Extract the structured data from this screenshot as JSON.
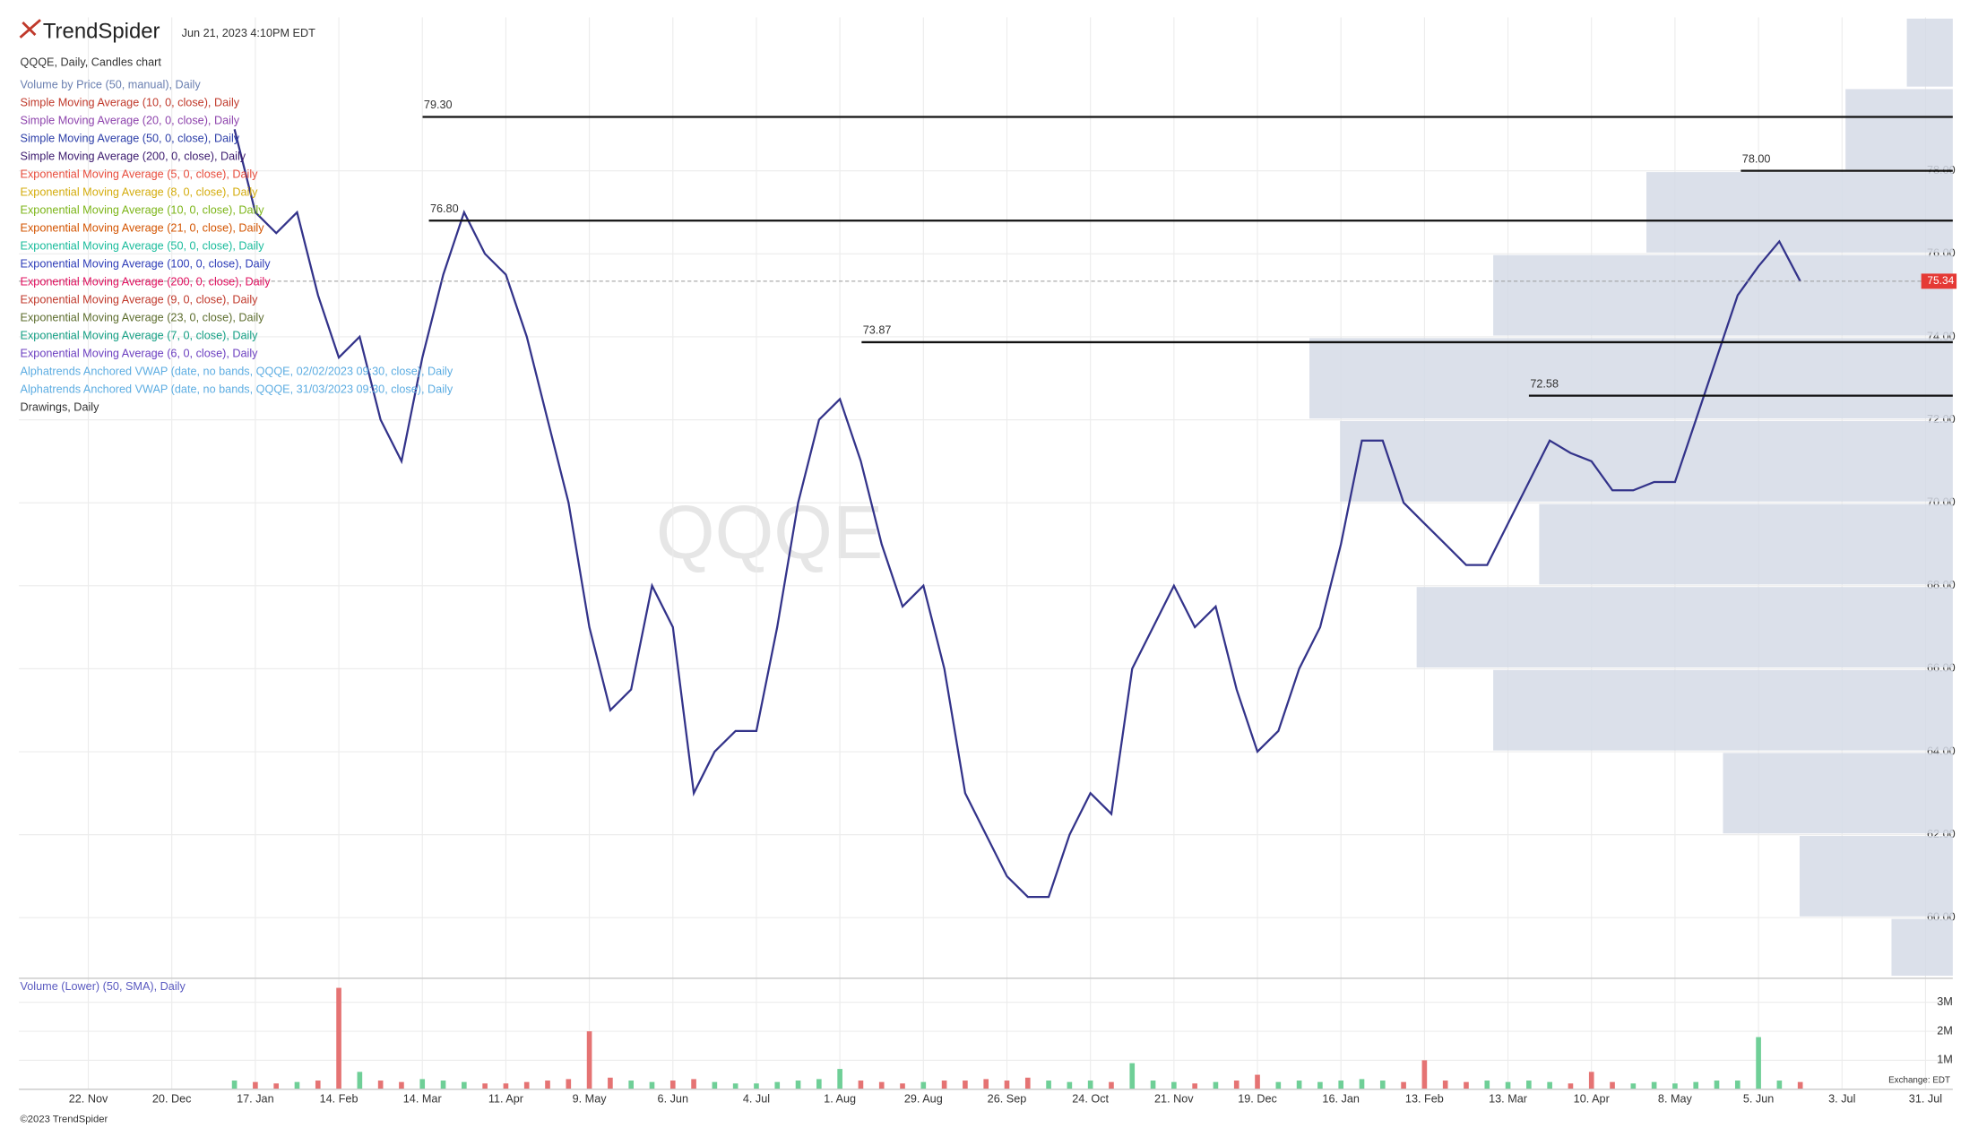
{
  "header": {
    "logo": "TrendSpider",
    "timestamp": "Jun 21, 2023 4:10PM EDT",
    "symbol_line": "QQQE, Daily, Candles chart",
    "watermark": "QQQE"
  },
  "studies": [
    {
      "name": "Volume by Price (50, manual), Daily",
      "color": "#6a7fb0"
    },
    {
      "name": "Simple Moving Average (10, 0, close), Daily",
      "color": "#c0392b"
    },
    {
      "name": "Simple Moving Average (20, 0, close), Daily",
      "color": "#8e44ad"
    },
    {
      "name": "Simple Moving Average (50, 0, close), Daily",
      "color": "#2c3ea8"
    },
    {
      "name": "Simple Moving Average (200, 0, close), Daily",
      "color": "#3b1a6e"
    },
    {
      "name": "Exponential Moving Average (5, 0, close), Daily",
      "color": "#e74c3c"
    },
    {
      "name": "Exponential Moving Average (8, 0, close), Daily",
      "color": "#d4ac0d"
    },
    {
      "name": "Exponential Moving Average (10, 0, close), Daily",
      "color": "#7cb518"
    },
    {
      "name": "Exponential Moving Average (21, 0, close), Daily",
      "color": "#d35400"
    },
    {
      "name": "Exponential Moving Average (50, 0, close), Daily",
      "color": "#1abc9c"
    },
    {
      "name": "Exponential Moving Average (100, 0, close), Daily",
      "color": "#2e3db8"
    },
    {
      "name": "Exponential Moving Average (200, 0, close), Daily",
      "color": "#e0115f"
    },
    {
      "name": "Exponential Moving Average (9, 0, close), Daily",
      "color": "#c0392b"
    },
    {
      "name": "Exponential Moving Average (23, 0, close), Daily",
      "color": "#5d6d2e"
    },
    {
      "name": "Exponential Moving Average (7, 0, close), Daily",
      "color": "#16a085"
    },
    {
      "name": "Exponential Moving Average (6, 0, close), Daily",
      "color": "#6c3fc0"
    },
    {
      "name": "Alphatrends Anchored VWAP (date, no bands, QQQE, 02/02/2023 09:30, close), Daily",
      "color": "#5dade2"
    },
    {
      "name": "Alphatrends Anchored VWAP (date, no bands, QQQE, 31/03/2023 09:30, close), Daily",
      "color": "#5dade2"
    },
    {
      "name": "Drawings, Daily",
      "color": "#333333"
    }
  ],
  "chart_data": {
    "type": "line",
    "color": "#33338a",
    "categories": [
      "22. Nov",
      null,
      null,
      null,
      "20. Dec",
      null,
      null,
      null,
      "17. Jan",
      null,
      null,
      null,
      "14. Feb",
      null,
      null,
      null,
      "14. Mar",
      null,
      null,
      null,
      "11. Apr",
      null,
      null,
      null,
      "9. May",
      null,
      null,
      null,
      "6. Jun",
      null,
      null,
      null,
      "4. Jul",
      null,
      null,
      null,
      "1. Aug",
      null,
      null,
      null,
      "29. Aug",
      null,
      null,
      null,
      "26. Sep",
      null,
      null,
      null,
      "24. Oct",
      null,
      null,
      null,
      "21. Nov",
      null,
      null,
      null,
      "19. Dec",
      null,
      null,
      null,
      "16. Jan",
      null,
      null,
      null,
      "13. Feb",
      null,
      null,
      null,
      "13. Mar",
      null,
      null,
      null,
      "10. Apr",
      null,
      null,
      null,
      "8. May",
      null,
      null,
      null,
      "5. Jun",
      null,
      null,
      null,
      "3. Jul",
      null,
      null,
      null,
      "31. Jul"
    ],
    "values": [
      null,
      null,
      null,
      null,
      null,
      null,
      null,
      79,
      77,
      76.5,
      77,
      75,
      73.5,
      74,
      72,
      71,
      73.5,
      75.5,
      77,
      76,
      75.5,
      74,
      72,
      70,
      67,
      65,
      65.5,
      68,
      67,
      63,
      64,
      64.5,
      64.5,
      67,
      70,
      72,
      72.5,
      71,
      69,
      67.5,
      68,
      66,
      63,
      62,
      61,
      60.5,
      60.5,
      62,
      63,
      62.5,
      66,
      67,
      68,
      67,
      67.5,
      65.5,
      64,
      64.5,
      66,
      67,
      69,
      71.5,
      71.5,
      70,
      69.5,
      69,
      68.5,
      68.5,
      69.5,
      70.5,
      71.5,
      71.2,
      71,
      70.3,
      70.3,
      70.5,
      70.5,
      72,
      73.5,
      75,
      75.7,
      76.3,
      75.34,
      null,
      null,
      null,
      null,
      null,
      null
    ],
    "ylim": [
      58.57,
      81.7
    ],
    "yticks": [
      {
        "value": 60,
        "label": "60.00"
      },
      {
        "value": 62,
        "label": "62.00"
      },
      {
        "value": 64,
        "label": "64.00"
      },
      {
        "value": 66,
        "label": "66.00"
      },
      {
        "value": 68,
        "label": "68.00"
      },
      {
        "value": 70,
        "label": "70.00"
      },
      {
        "value": 72,
        "label": "72.00"
      },
      {
        "value": 74,
        "label": "74.00"
      },
      {
        "value": 76,
        "label": "76.00"
      },
      {
        "value": 78,
        "label": "78.00"
      }
    ],
    "grid": true,
    "levels": [
      {
        "value": 79.3,
        "label": "79.30"
      },
      {
        "value": 76.8,
        "label": "76.80"
      },
      {
        "value": 73.87,
        "label": "73.87"
      },
      {
        "value": 72.58,
        "label": "72.58"
      },
      {
        "value": 78,
        "label": "78.00"
      }
    ],
    "last_price": {
      "value": 75.34,
      "label": "75.34"
    },
    "volume_by_price": {
      "bins": [
        58,
        60,
        62,
        64,
        66,
        68,
        70,
        72,
        74,
        76,
        78,
        80,
        82
      ],
      "values": [
        40,
        100,
        150,
        300,
        350,
        270,
        400,
        420,
        300,
        200,
        70,
        30
      ],
      "color": "#d5dbe6"
    },
    "volume": {
      "title": "Volume (Lower) (50, SMA), Daily",
      "up_color": "#6fcf97",
      "down_color": "#e57373",
      "values": [
        null,
        null,
        null,
        null,
        null,
        null,
        null,
        300000,
        250000,
        200000,
        250000,
        300000,
        3500000,
        600000,
        300000,
        250000,
        350000,
        300000,
        250000,
        200000,
        200000,
        250000,
        300000,
        350000,
        2000000,
        400000,
        300000,
        250000,
        300000,
        350000,
        250000,
        200000,
        200000,
        250000,
        300000,
        350000,
        700000,
        300000,
        250000,
        200000,
        250000,
        300000,
        300000,
        350000,
        300000,
        400000,
        300000,
        250000,
        300000,
        250000,
        900000,
        300000,
        250000,
        200000,
        250000,
        300000,
        500000,
        250000,
        300000,
        250000,
        300000,
        350000,
        300000,
        250000,
        1000000,
        300000,
        250000,
        300000,
        250000,
        300000,
        250000,
        200000,
        600000,
        250000,
        200000,
        250000,
        200000,
        250000,
        300000,
        300000,
        1800000,
        300000,
        250000,
        null,
        null,
        null,
        null,
        null,
        null
      ],
      "ylim": [
        0,
        3700000
      ],
      "yticks": [
        {
          "value": 1000000,
          "label": "1M"
        },
        {
          "value": 2000000,
          "label": "2M"
        },
        {
          "value": 3000000,
          "label": "3M"
        }
      ]
    }
  },
  "footer": {
    "copyright": "©2023 TrendSpider",
    "exchange": "Exchange: EDT"
  }
}
